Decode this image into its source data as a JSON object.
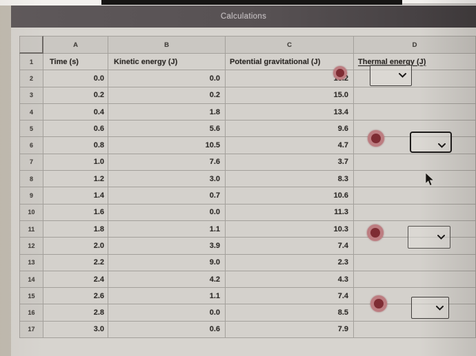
{
  "window": {
    "title": "Calculations"
  },
  "sheet": {
    "columns": [
      "A",
      "B",
      "C",
      "D"
    ],
    "header": {
      "num": "1",
      "a": "Time (s)",
      "b": "Kinetic energy (J)",
      "c": "Potential gravitational (J)",
      "d": "Thermal energy (J)"
    },
    "rows": [
      {
        "n": "2",
        "t": "0.0",
        "k": "0.0",
        "p": "16.2"
      },
      {
        "n": "3",
        "t": "0.2",
        "k": "0.2",
        "p": "15.0"
      },
      {
        "n": "4",
        "t": "0.4",
        "k": "1.8",
        "p": "13.4"
      },
      {
        "n": "5",
        "t": "0.6",
        "k": "5.6",
        "p": "9.6"
      },
      {
        "n": "6",
        "t": "0.8",
        "k": "10.5",
        "p": "4.7"
      },
      {
        "n": "7",
        "t": "1.0",
        "k": "7.6",
        "p": "3.7"
      },
      {
        "n": "8",
        "t": "1.2",
        "k": "3.0",
        "p": "8.3"
      },
      {
        "n": "9",
        "t": "1.4",
        "k": "0.7",
        "p": "10.6"
      },
      {
        "n": "10",
        "t": "1.6",
        "k": "0.0",
        "p": "11.3"
      },
      {
        "n": "11",
        "t": "1.8",
        "k": "1.1",
        "p": "10.3"
      },
      {
        "n": "12",
        "t": "2.0",
        "k": "3.9",
        "p": "7.4"
      },
      {
        "n": "13",
        "t": "2.2",
        "k": "9.0",
        "p": "2.3"
      },
      {
        "n": "14",
        "t": "2.4",
        "k": "4.2",
        "p": "4.3"
      },
      {
        "n": "15",
        "t": "2.6",
        "k": "1.1",
        "p": "7.4"
      },
      {
        "n": "16",
        "t": "2.8",
        "k": "0.0",
        "p": "8.5"
      },
      {
        "n": "17",
        "t": "3.0",
        "k": "0.6",
        "p": "7.9"
      }
    ],
    "dropdowns": [
      {
        "anchor_row": "2",
        "value": ""
      },
      {
        "anchor_row": "6",
        "value": ""
      },
      {
        "anchor_row": "12",
        "value": ""
      },
      {
        "anchor_row": "16",
        "value": ""
      }
    ]
  },
  "icons": {
    "dropdown_chevron": "chevron-down",
    "answer_marker": "red-filled-circle",
    "pointer": "mouse-arrow"
  },
  "colors": {
    "titlebar": "#575153",
    "marker_ring": "#bd7d81",
    "marker_core": "#7e2c33",
    "sheet_bg": "#d4d1cc",
    "grid_line": "#a3a09b"
  }
}
